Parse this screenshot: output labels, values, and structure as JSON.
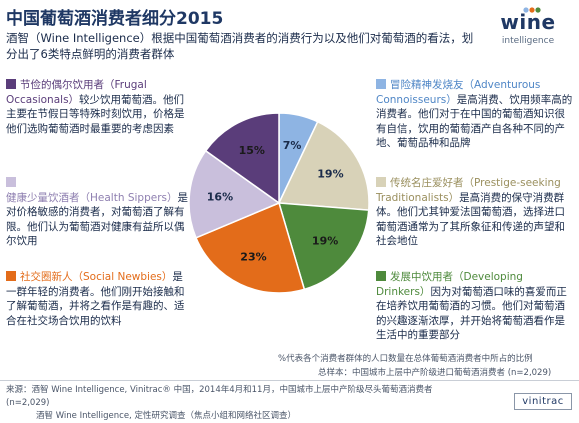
{
  "title": "中国葡萄酒消费者细分2015",
  "intro": "酒智（Wine Intelligence）根据中国葡萄酒消费者的消费行为以及他们对葡萄酒的看法，划分出了6类特点鲜明的消费者群体",
  "logo": {
    "wine": "wine",
    "sub": "intelligence"
  },
  "segments": {
    "frugal": {
      "name": "节俭的偶尔饮用者（Frugal Occasionals）",
      "desc": "较少饮用葡萄酒。他们主要在节假日等特殊时刻饮用，价格是他们选购葡萄酒时最重要的考虑因素",
      "color": "#5a3d7a"
    },
    "health": {
      "name": "健康少量饮酒者（Health Sippers）",
      "desc": "是对价格敏感的消费者，对葡萄酒了解有限。他们认为葡萄酒对健康有益所以偶尔饮用",
      "color": "#c9bfdc"
    },
    "social": {
      "name": "社交圈新人（Social Newbies）",
      "desc": "是一群年轻的消费者。他们刚开始接触和了解葡萄酒，并将之看作是有趣的、适合在社交场合饮用的饮料",
      "color": "#e36c1a"
    },
    "adventurous": {
      "name": "冒险精神发烧友（Adventurous Connoisseurs）",
      "desc": "是高消费、饮用频率高的消费者。他们对于在中国的葡萄酒知识很有自信，饮用的葡萄酒产自各种不同的产地、葡萄品种和品牌",
      "color": "#8eb4e3"
    },
    "prestige": {
      "name": "传统名庄爱好者（Prestige-seeking Traditionalists）",
      "desc": "是高消费的保守消费群体。他们尤其钟爱法国葡萄酒，选择进口葡萄酒通常为了其所象征和传递的声望和社会地位",
      "color": "#d8d2b8"
    },
    "developing": {
      "name": "发展中饮用者（Developing Drinkers）",
      "desc": "因为对葡萄酒口味的喜爱而正在培养饮用葡萄酒的习惯。他们对葡萄酒的兴趣逐渐浓厚，并开始将葡萄酒看作是生活中的重要部分",
      "color": "#4e8a3c"
    }
  },
  "chart_data": {
    "type": "pie",
    "slices": [
      {
        "segment": "adventurous",
        "value": 7,
        "label": "7%",
        "color": "#8eb4e3"
      },
      {
        "segment": "prestige",
        "value": 19,
        "label": "19%",
        "color": "#d8d2b8"
      },
      {
        "segment": "developing",
        "value": 19,
        "label": "19%",
        "color": "#4e8a3c"
      },
      {
        "segment": "social",
        "value": 23,
        "label": "23%",
        "color": "#e36c1a"
      },
      {
        "segment": "health",
        "value": 16,
        "label": "16%",
        "color": "#c9bfdc"
      },
      {
        "segment": "frugal",
        "value": 15,
        "label": "15%",
        "color": "#5a3d7a"
      }
    ]
  },
  "footnote_1": "%代表各个消费者群体的人口数量在总体葡萄酒消费者中所占的比例",
  "footnote_2": "总样本：中国城市上层中产阶级进口葡萄酒消费者 (n=2,029)",
  "source": "来源：酒智 Wine Intelligence, Vinitrac® 中国，2014年4月和11月，中国城市上层中产阶级尽头葡萄酒消费者 (n=2,029)",
  "source_2": "酒智 Wine Intelligence, 定性研究调查（焦点小组和网络社区调查）",
  "vinitrac": "vinitrac"
}
